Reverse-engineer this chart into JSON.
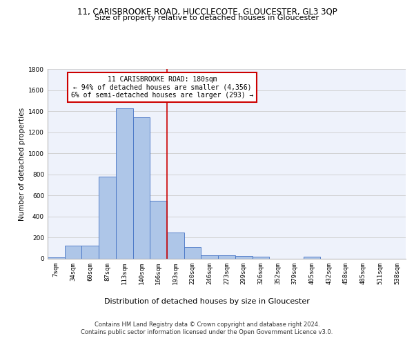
{
  "title_line1": "11, CARISBROOKE ROAD, HUCCLECOTE, GLOUCESTER, GL3 3QP",
  "title_line2": "Size of property relative to detached houses in Gloucester",
  "xlabel": "Distribution of detached houses by size in Gloucester",
  "ylabel": "Number of detached properties",
  "bin_labels": [
    "7sqm",
    "34sqm",
    "60sqm",
    "87sqm",
    "113sqm",
    "140sqm",
    "166sqm",
    "193sqm",
    "220sqm",
    "246sqm",
    "273sqm",
    "299sqm",
    "326sqm",
    "352sqm",
    "379sqm",
    "405sqm",
    "432sqm",
    "458sqm",
    "485sqm",
    "511sqm",
    "538sqm"
  ],
  "bar_values": [
    15,
    125,
    125,
    780,
    1430,
    1340,
    550,
    250,
    110,
    35,
    30,
    28,
    20,
    0,
    0,
    20,
    0,
    0,
    0,
    0,
    0
  ],
  "bar_color": "#aec6e8",
  "bar_edge_color": "#4472c4",
  "annotation_line1": "11 CARISBROOKE ROAD: 180sqm",
  "annotation_line2": "← 94% of detached houses are smaller (4,356)",
  "annotation_line3": "6% of semi-detached houses are larger (293) →",
  "annotation_box_color": "#ffffff",
  "annotation_box_edge": "#cc0000",
  "vline_color": "#cc0000",
  "ylim": [
    0,
    1800
  ],
  "yticks": [
    0,
    200,
    400,
    600,
    800,
    1000,
    1200,
    1400,
    1600,
    1800
  ],
  "footer_line1": "Contains HM Land Registry data © Crown copyright and database right 2024.",
  "footer_line2": "Contains public sector information licensed under the Open Government Licence v3.0.",
  "bg_color": "#eef2fb",
  "grid_color": "#cccccc",
  "title1_fontsize": 8.5,
  "title2_fontsize": 8,
  "xlabel_fontsize": 8,
  "ylabel_fontsize": 7.5,
  "tick_fontsize": 6.5,
  "annotation_fontsize": 7.0,
  "footer_fontsize": 6.0
}
